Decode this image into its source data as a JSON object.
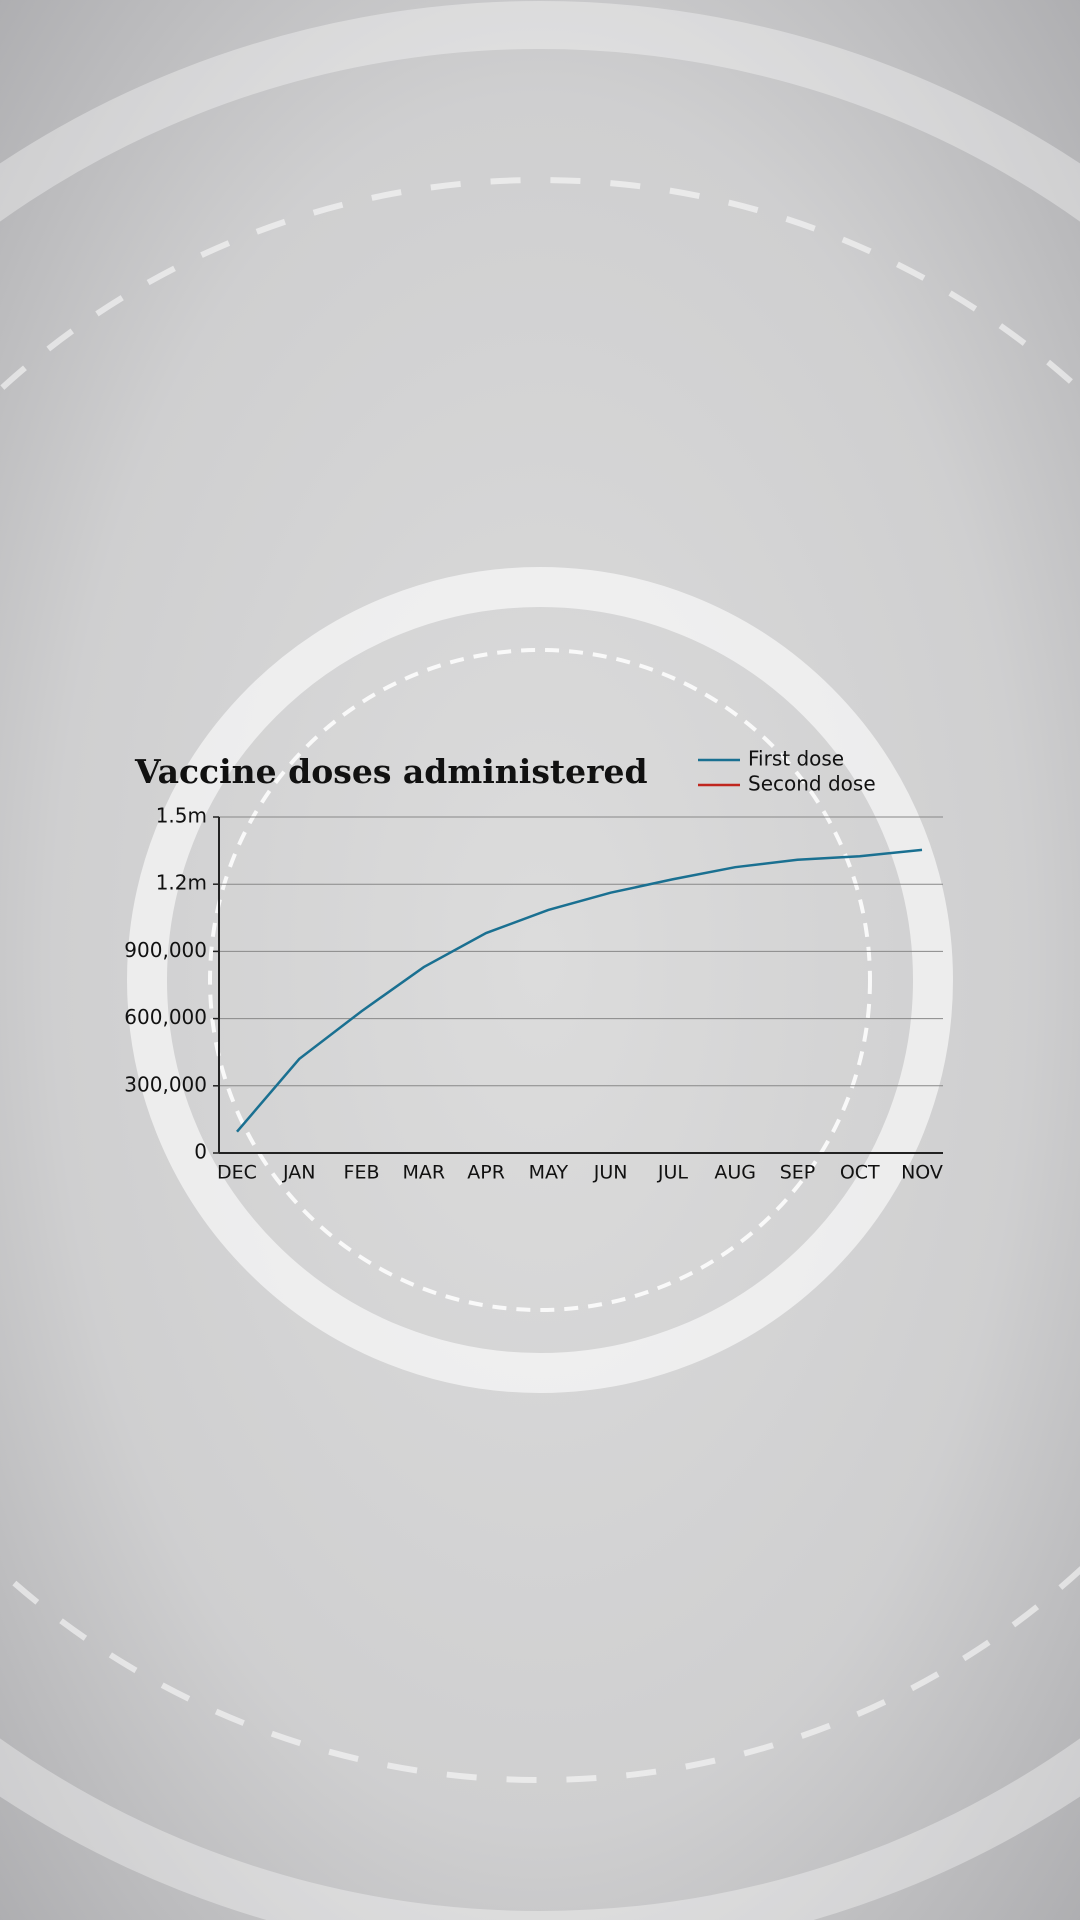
{
  "chart_data": {
    "type": "line",
    "title": "Vaccine doses administered",
    "categories": [
      "DEC",
      "JAN",
      "FEB",
      "MAR",
      "APR",
      "MAY",
      "JUN",
      "JUL",
      "AUG",
      "SEP",
      "OCT",
      "NOV"
    ],
    "series": [
      {
        "name": "First dose",
        "color": "#1a7091",
        "values": [
          95000,
          420000,
          633000,
          830000,
          982000,
          1085000,
          1162000,
          1222000,
          1276000,
          1309000,
          1325000,
          1353000
        ]
      },
      {
        "name": "Second dose",
        "color": "#c0261e",
        "values": [
          null,
          null,
          null,
          null,
          null,
          null,
          null,
          null,
          null,
          null,
          null,
          null
        ]
      }
    ],
    "ylim": [
      0,
      1500000
    ],
    "yticks": [
      0,
      {
        "value": 300000,
        "label": "300,000"
      },
      {
        "value": 600000,
        "label": "600,000"
      },
      {
        "value": 900000,
        "label": "900,000"
      },
      {
        "value": 1200000,
        "label": "1.2m"
      },
      {
        "value": 1500000,
        "label": "1.5m"
      }
    ],
    "grid": true
  }
}
